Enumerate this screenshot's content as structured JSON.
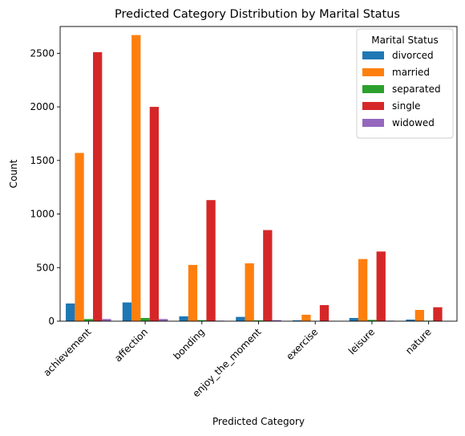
{
  "chart_data": {
    "type": "bar",
    "title": "Predicted Category Distribution by Marital Status",
    "xlabel": "Predicted Category",
    "ylabel": "Count",
    "ylim": [
      0,
      2750
    ],
    "yticks": [
      0,
      500,
      1000,
      1500,
      2000,
      2500
    ],
    "grid": false,
    "legend": {
      "title": "Marital Status",
      "placement": "top-right"
    },
    "categories": [
      "achievement",
      "affection",
      "bonding",
      "enjoy_the_moment",
      "exercise",
      "leisure",
      "nature"
    ],
    "series": [
      {
        "name": "divorced",
        "color": "#1f77b4",
        "values": [
          165,
          175,
          45,
          40,
          8,
          30,
          15
        ]
      },
      {
        "name": "married",
        "color": "#ff7f0e",
        "values": [
          1570,
          2670,
          525,
          540,
          60,
          580,
          105
        ]
      },
      {
        "name": "separated",
        "color": "#2ca02c",
        "values": [
          20,
          30,
          10,
          8,
          2,
          12,
          5
        ]
      },
      {
        "name": "single",
        "color": "#d62728",
        "values": [
          2510,
          2000,
          1130,
          850,
          150,
          650,
          130
        ]
      },
      {
        "name": "widowed",
        "color": "#9467bd",
        "values": [
          20,
          20,
          5,
          10,
          2,
          5,
          2
        ]
      }
    ]
  }
}
